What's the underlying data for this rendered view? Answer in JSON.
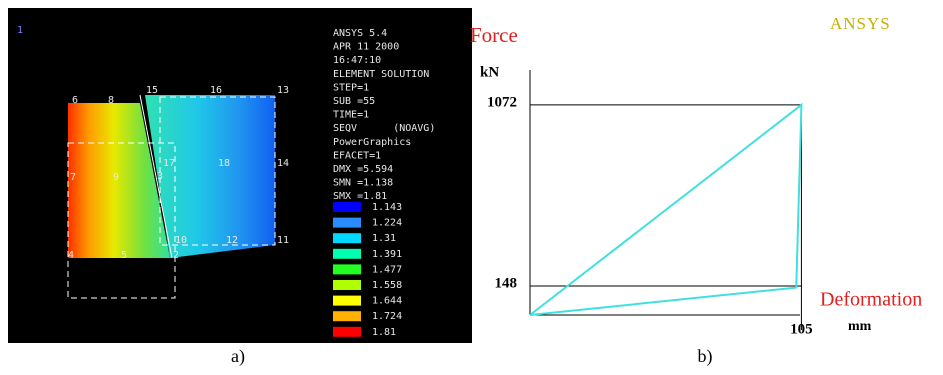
{
  "panel_a": {
    "caption": "a)",
    "window_number": "1",
    "info_lines": [
      "ANSYS 5.4",
      "APR 11 2000",
      "16:47:10",
      "ELEMENT SOLUTION",
      "STEP=1",
      "SUB =55",
      "TIME=1",
      "SEQV      (NOAVG)",
      "PowerGraphics",
      "EFACET=1",
      "DMX =5.594",
      "SMN =1.138",
      "SMX =1.81"
    ],
    "legend_values": [
      "1.143",
      "1.224",
      "1.31",
      "1.391",
      "1.477",
      "1.558",
      "1.644",
      "1.724",
      "1.81"
    ],
    "nodes": [
      {
        "label": "6"
      },
      {
        "label": "8"
      },
      {
        "label": "15"
      },
      {
        "label": "16"
      },
      {
        "label": "13"
      },
      {
        "label": "7"
      },
      {
        "label": "9"
      },
      {
        "label": "3"
      },
      {
        "label": "17"
      },
      {
        "label": "18"
      },
      {
        "label": "14"
      },
      {
        "label": "4"
      },
      {
        "label": "5"
      },
      {
        "label": "2"
      },
      {
        "label": "10"
      },
      {
        "label": "12"
      },
      {
        "label": "11"
      }
    ]
  },
  "chart_data": {
    "type": "line",
    "caption": "b)",
    "logo": "ANSYS",
    "y_label": "Force",
    "y_unit": "kN",
    "x_label": "Deformation",
    "x_unit": "mm",
    "x": [
      0,
      105,
      103,
      0
    ],
    "series": [
      {
        "color": "#40e0e0",
        "values": [
          0,
          1072,
          140,
          0
        ]
      }
    ],
    "xlim": [
      0,
      106
    ],
    "ylim": [
      0,
      1250
    ],
    "xticks": [
      105
    ],
    "yticks": [
      148,
      1072
    ]
  }
}
